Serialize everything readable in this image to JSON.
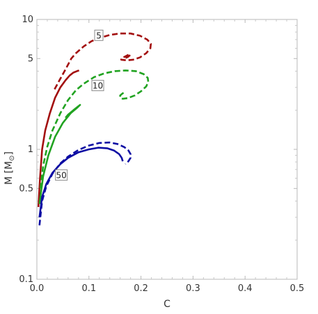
{
  "chart_data": {
    "type": "line",
    "xlabel": "C",
    "ylabel": "M [M",
    "ylabel_sub": "⊙",
    "ylabel_close": "]",
    "xlim": [
      0,
      0.5
    ],
    "ylim": [
      0.1,
      10
    ],
    "yscale": "log",
    "xticks": [
      0.0,
      0.1,
      0.2,
      0.3,
      0.4,
      0.5
    ],
    "xtick_labels": [
      "0.0",
      "0.1",
      "0.2",
      "0.3",
      "0.4",
      "0.5"
    ],
    "yticks": [
      0.1,
      0.5,
      1,
      5,
      10
    ],
    "ytick_labels": [
      "0.1",
      "0.5",
      "1",
      "5",
      "10"
    ],
    "grid": false,
    "colors": {
      "red": "#a30f0f",
      "green": "#21a321",
      "blue": "#0c0ca3"
    },
    "series": [
      {
        "group": "5",
        "style": "solid",
        "color": "red",
        "x": [
          0.003,
          0.006,
          0.01,
          0.016,
          0.025,
          0.035,
          0.045,
          0.055,
          0.063,
          0.07,
          0.077,
          0.081
        ],
        "y": [
          0.36,
          0.6,
          1.0,
          1.4,
          1.9,
          2.5,
          3.0,
          3.4,
          3.7,
          3.9,
          4.0,
          4.05
        ]
      },
      {
        "group": "5",
        "style": "dashed",
        "color": "red",
        "x": [
          0.034,
          0.045,
          0.056,
          0.066,
          0.075,
          0.09,
          0.105,
          0.12,
          0.14,
          0.16,
          0.18,
          0.198,
          0.212,
          0.219,
          0.218,
          0.21,
          0.198,
          0.185,
          0.172,
          0.162,
          0.162,
          0.17,
          0.178,
          0.18,
          0.175,
          0.17
        ],
        "y": [
          2.9,
          3.5,
          4.2,
          5.0,
          5.5,
          6.2,
          6.8,
          7.2,
          7.6,
          7.8,
          7.8,
          7.5,
          7.0,
          6.5,
          6.0,
          5.5,
          5.1,
          4.9,
          4.85,
          4.9,
          5.0,
          5.2,
          5.4,
          5.35,
          5.15,
          5.05
        ]
      },
      {
        "group": "10",
        "style": "dashed",
        "color": "green",
        "x": [
          0.007,
          0.012,
          0.02,
          0.03,
          0.045,
          0.06,
          0.075,
          0.09,
          0.11,
          0.13,
          0.15,
          0.17,
          0.19,
          0.205,
          0.213,
          0.214,
          0.21,
          0.2,
          0.188,
          0.175,
          0.165,
          0.16,
          0.16,
          0.165,
          0.17,
          0.17
        ],
        "y": [
          0.5,
          0.75,
          1.05,
          1.4,
          1.9,
          2.4,
          2.85,
          3.2,
          3.6,
          3.85,
          4.0,
          4.05,
          4.0,
          3.8,
          3.55,
          3.3,
          3.05,
          2.8,
          2.6,
          2.48,
          2.45,
          2.5,
          2.6,
          2.7,
          2.75,
          2.75
        ]
      },
      {
        "group": "10",
        "style": "solid",
        "color": "green",
        "x": [
          0.005,
          0.012,
          0.022,
          0.035,
          0.05,
          0.065,
          0.078,
          0.083,
          0.08,
          0.07,
          0.06,
          0.055
        ],
        "y": [
          0.38,
          0.62,
          0.9,
          1.25,
          1.6,
          1.9,
          2.1,
          2.2,
          2.15,
          2.0,
          1.85,
          1.75
        ]
      },
      {
        "group": "50",
        "style": "dashed",
        "color": "blue",
        "x": [
          0.005,
          0.01,
          0.018,
          0.03,
          0.045,
          0.06,
          0.08,
          0.1,
          0.12,
          0.14,
          0.155,
          0.168,
          0.176,
          0.18,
          0.18,
          0.176,
          0.17
        ],
        "y": [
          0.26,
          0.4,
          0.52,
          0.65,
          0.78,
          0.88,
          0.99,
          1.07,
          1.12,
          1.13,
          1.1,
          1.04,
          0.98,
          0.92,
          0.86,
          0.81,
          0.77
        ]
      },
      {
        "group": "50",
        "style": "solid",
        "color": "blue",
        "x": [
          0.005,
          0.01,
          0.018,
          0.03,
          0.045,
          0.06,
          0.08,
          0.1,
          0.118,
          0.135,
          0.148,
          0.158,
          0.163,
          0.165
        ],
        "y": [
          0.3,
          0.43,
          0.54,
          0.66,
          0.77,
          0.86,
          0.95,
          1.0,
          1.03,
          1.02,
          0.98,
          0.92,
          0.86,
          0.81
        ]
      }
    ],
    "annotations": [
      {
        "text": "5",
        "x": 0.119,
        "y": 7.55
      },
      {
        "text": "10",
        "x": 0.117,
        "y": 3.1
      },
      {
        "text": "50",
        "x": 0.047,
        "y": 0.635
      }
    ]
  }
}
